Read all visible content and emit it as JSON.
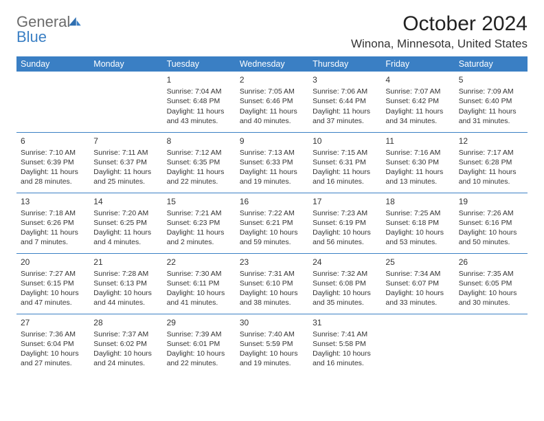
{
  "brand": {
    "word1": "General",
    "word2": "Blue",
    "color_general": "#6b6b6b",
    "color_blue": "#3a7fc4"
  },
  "title": "October 2024",
  "location": "Winona, Minnesota, United States",
  "colors": {
    "header_bg": "#3a7fc4",
    "header_fg": "#ffffff",
    "rule": "#3a7fc4",
    "text": "#333333",
    "background": "#ffffff"
  },
  "typography": {
    "title_fontsize": 30,
    "location_fontsize": 17,
    "dayheader_fontsize": 12.5,
    "daynum_fontsize": 12,
    "body_fontsize": 10.5
  },
  "day_headers": [
    "Sunday",
    "Monday",
    "Tuesday",
    "Wednesday",
    "Thursday",
    "Friday",
    "Saturday"
  ],
  "weeks": [
    [
      null,
      null,
      {
        "n": "1",
        "sr": "Sunrise: 7:04 AM",
        "ss": "Sunset: 6:48 PM",
        "dl1": "Daylight: 11 hours",
        "dl2": "and 43 minutes."
      },
      {
        "n": "2",
        "sr": "Sunrise: 7:05 AM",
        "ss": "Sunset: 6:46 PM",
        "dl1": "Daylight: 11 hours",
        "dl2": "and 40 minutes."
      },
      {
        "n": "3",
        "sr": "Sunrise: 7:06 AM",
        "ss": "Sunset: 6:44 PM",
        "dl1": "Daylight: 11 hours",
        "dl2": "and 37 minutes."
      },
      {
        "n": "4",
        "sr": "Sunrise: 7:07 AM",
        "ss": "Sunset: 6:42 PM",
        "dl1": "Daylight: 11 hours",
        "dl2": "and 34 minutes."
      },
      {
        "n": "5",
        "sr": "Sunrise: 7:09 AM",
        "ss": "Sunset: 6:40 PM",
        "dl1": "Daylight: 11 hours",
        "dl2": "and 31 minutes."
      }
    ],
    [
      {
        "n": "6",
        "sr": "Sunrise: 7:10 AM",
        "ss": "Sunset: 6:39 PM",
        "dl1": "Daylight: 11 hours",
        "dl2": "and 28 minutes."
      },
      {
        "n": "7",
        "sr": "Sunrise: 7:11 AM",
        "ss": "Sunset: 6:37 PM",
        "dl1": "Daylight: 11 hours",
        "dl2": "and 25 minutes."
      },
      {
        "n": "8",
        "sr": "Sunrise: 7:12 AM",
        "ss": "Sunset: 6:35 PM",
        "dl1": "Daylight: 11 hours",
        "dl2": "and 22 minutes."
      },
      {
        "n": "9",
        "sr": "Sunrise: 7:13 AM",
        "ss": "Sunset: 6:33 PM",
        "dl1": "Daylight: 11 hours",
        "dl2": "and 19 minutes."
      },
      {
        "n": "10",
        "sr": "Sunrise: 7:15 AM",
        "ss": "Sunset: 6:31 PM",
        "dl1": "Daylight: 11 hours",
        "dl2": "and 16 minutes."
      },
      {
        "n": "11",
        "sr": "Sunrise: 7:16 AM",
        "ss": "Sunset: 6:30 PM",
        "dl1": "Daylight: 11 hours",
        "dl2": "and 13 minutes."
      },
      {
        "n": "12",
        "sr": "Sunrise: 7:17 AM",
        "ss": "Sunset: 6:28 PM",
        "dl1": "Daylight: 11 hours",
        "dl2": "and 10 minutes."
      }
    ],
    [
      {
        "n": "13",
        "sr": "Sunrise: 7:18 AM",
        "ss": "Sunset: 6:26 PM",
        "dl1": "Daylight: 11 hours",
        "dl2": "and 7 minutes."
      },
      {
        "n": "14",
        "sr": "Sunrise: 7:20 AM",
        "ss": "Sunset: 6:25 PM",
        "dl1": "Daylight: 11 hours",
        "dl2": "and 4 minutes."
      },
      {
        "n": "15",
        "sr": "Sunrise: 7:21 AM",
        "ss": "Sunset: 6:23 PM",
        "dl1": "Daylight: 11 hours",
        "dl2": "and 2 minutes."
      },
      {
        "n": "16",
        "sr": "Sunrise: 7:22 AM",
        "ss": "Sunset: 6:21 PM",
        "dl1": "Daylight: 10 hours",
        "dl2": "and 59 minutes."
      },
      {
        "n": "17",
        "sr": "Sunrise: 7:23 AM",
        "ss": "Sunset: 6:19 PM",
        "dl1": "Daylight: 10 hours",
        "dl2": "and 56 minutes."
      },
      {
        "n": "18",
        "sr": "Sunrise: 7:25 AM",
        "ss": "Sunset: 6:18 PM",
        "dl1": "Daylight: 10 hours",
        "dl2": "and 53 minutes."
      },
      {
        "n": "19",
        "sr": "Sunrise: 7:26 AM",
        "ss": "Sunset: 6:16 PM",
        "dl1": "Daylight: 10 hours",
        "dl2": "and 50 minutes."
      }
    ],
    [
      {
        "n": "20",
        "sr": "Sunrise: 7:27 AM",
        "ss": "Sunset: 6:15 PM",
        "dl1": "Daylight: 10 hours",
        "dl2": "and 47 minutes."
      },
      {
        "n": "21",
        "sr": "Sunrise: 7:28 AM",
        "ss": "Sunset: 6:13 PM",
        "dl1": "Daylight: 10 hours",
        "dl2": "and 44 minutes."
      },
      {
        "n": "22",
        "sr": "Sunrise: 7:30 AM",
        "ss": "Sunset: 6:11 PM",
        "dl1": "Daylight: 10 hours",
        "dl2": "and 41 minutes."
      },
      {
        "n": "23",
        "sr": "Sunrise: 7:31 AM",
        "ss": "Sunset: 6:10 PM",
        "dl1": "Daylight: 10 hours",
        "dl2": "and 38 minutes."
      },
      {
        "n": "24",
        "sr": "Sunrise: 7:32 AM",
        "ss": "Sunset: 6:08 PM",
        "dl1": "Daylight: 10 hours",
        "dl2": "and 35 minutes."
      },
      {
        "n": "25",
        "sr": "Sunrise: 7:34 AM",
        "ss": "Sunset: 6:07 PM",
        "dl1": "Daylight: 10 hours",
        "dl2": "and 33 minutes."
      },
      {
        "n": "26",
        "sr": "Sunrise: 7:35 AM",
        "ss": "Sunset: 6:05 PM",
        "dl1": "Daylight: 10 hours",
        "dl2": "and 30 minutes."
      }
    ],
    [
      {
        "n": "27",
        "sr": "Sunrise: 7:36 AM",
        "ss": "Sunset: 6:04 PM",
        "dl1": "Daylight: 10 hours",
        "dl2": "and 27 minutes."
      },
      {
        "n": "28",
        "sr": "Sunrise: 7:37 AM",
        "ss": "Sunset: 6:02 PM",
        "dl1": "Daylight: 10 hours",
        "dl2": "and 24 minutes."
      },
      {
        "n": "29",
        "sr": "Sunrise: 7:39 AM",
        "ss": "Sunset: 6:01 PM",
        "dl1": "Daylight: 10 hours",
        "dl2": "and 22 minutes."
      },
      {
        "n": "30",
        "sr": "Sunrise: 7:40 AM",
        "ss": "Sunset: 5:59 PM",
        "dl1": "Daylight: 10 hours",
        "dl2": "and 19 minutes."
      },
      {
        "n": "31",
        "sr": "Sunrise: 7:41 AM",
        "ss": "Sunset: 5:58 PM",
        "dl1": "Daylight: 10 hours",
        "dl2": "and 16 minutes."
      },
      null,
      null
    ]
  ]
}
